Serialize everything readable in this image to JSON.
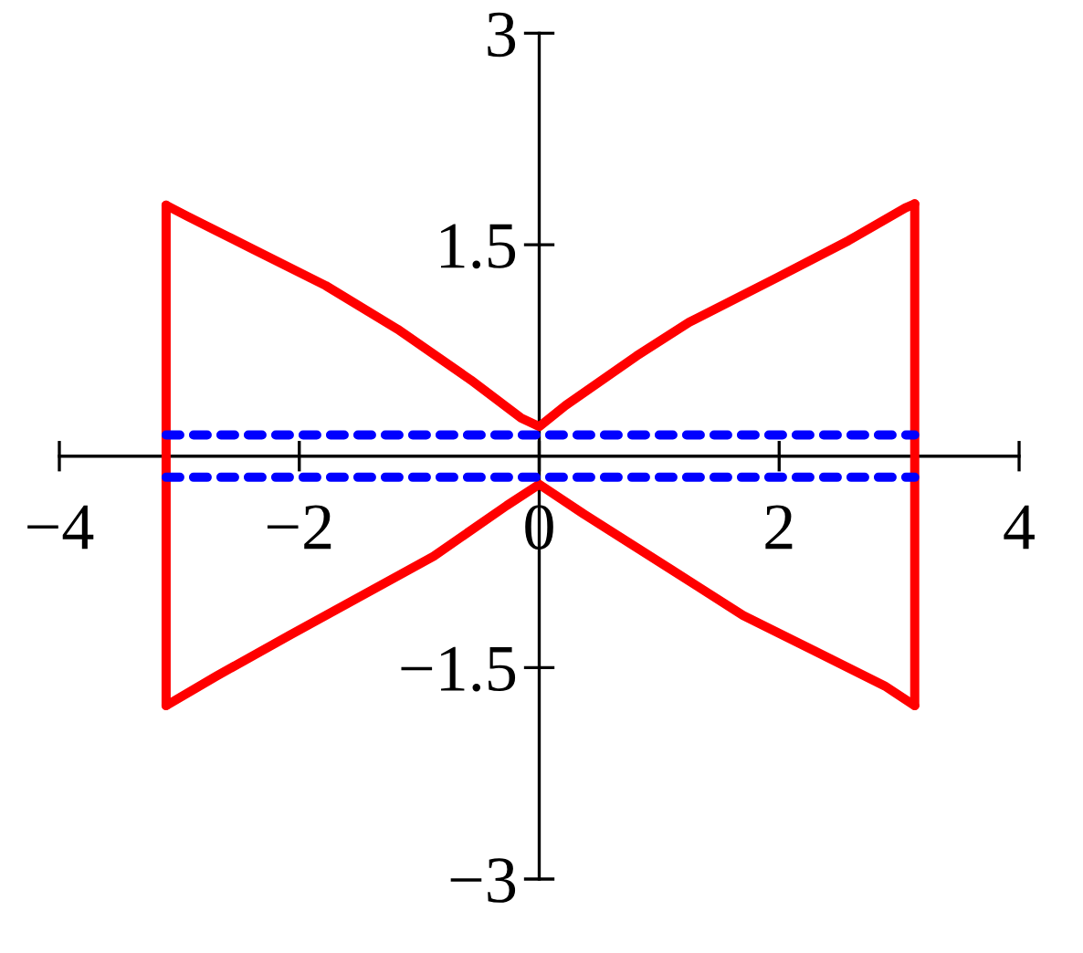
{
  "chart_data": {
    "type": "line",
    "xlim": [
      -4,
      4
    ],
    "ylim": [
      -3,
      3
    ],
    "xticks": [
      {
        "value": -4,
        "label": "−4"
      },
      {
        "value": -2,
        "label": "−2"
      },
      0,
      2,
      4
    ],
    "yticks": [
      {
        "value": -3,
        "label": "−3"
      },
      {
        "value": -1.5,
        "label": "−1.5"
      },
      1.5,
      3
    ],
    "series": [
      {
        "color": "#ff0000",
        "line_style": "solid",
        "x": [
          -3.11,
          -2.93,
          -2.39,
          -1.78,
          -1.18,
          -0.57,
          -0.15,
          0,
          0.22,
          0.81,
          1.25,
          1.99,
          2.58,
          3.05,
          3.13
        ],
        "values": [
          1.78,
          1.7,
          1.47,
          1.21,
          0.9,
          0.54,
          0.27,
          0.21,
          0.36,
          0.71,
          0.95,
          1.27,
          1.53,
          1.76,
          1.79
        ]
      },
      {
        "color": "#ff0000",
        "line_style": "solid",
        "x": [
          -3.11,
          -2.69,
          -2.08,
          -1.48,
          -0.88,
          -0.27,
          0,
          0.37,
          1.11,
          1.7,
          2.29,
          2.88,
          3.13
        ],
        "values": [
          -1.77,
          -1.56,
          -1.27,
          -0.99,
          -0.71,
          -0.35,
          -0.2,
          -0.41,
          -0.81,
          -1.13,
          -1.38,
          -1.63,
          -1.77
        ]
      },
      {
        "color": "#ff0000",
        "line_style": "solid",
        "x": [
          -3.11,
          -3.11
        ],
        "values": [
          -1.77,
          1.78
        ]
      },
      {
        "color": "#ff0000",
        "line_style": "solid",
        "x": [
          3.13,
          3.13
        ],
        "values": [
          -1.77,
          1.79
        ]
      },
      {
        "color": "#0000ff",
        "line_style": "dashed",
        "x": [
          -3.11,
          3.13
        ],
        "values": [
          0.15,
          0.15
        ]
      },
      {
        "color": "#0000ff",
        "line_style": "dashed",
        "x": [
          -3.11,
          3.13
        ],
        "values": [
          -0.15,
          -0.15
        ]
      }
    ]
  }
}
